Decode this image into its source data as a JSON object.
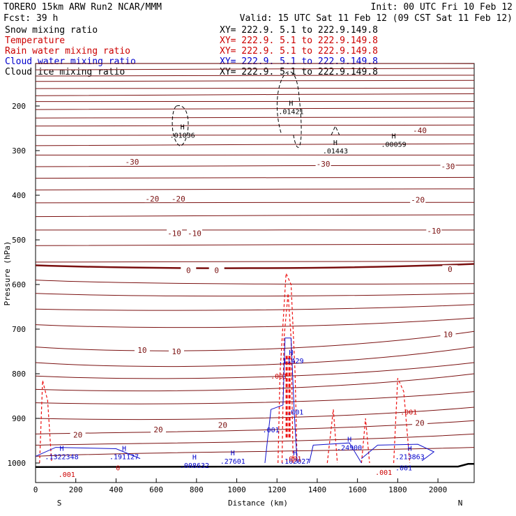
{
  "header": {
    "title_left": "TORERO  15km ARW   Run2    NCAR/MMM",
    "init": "Init: 00 UTC Fri 10 Feb 12",
    "fcst": "Fcst:    39 h",
    "valid": "Valid: 15 UTC Sat 11 Feb 12 (09 CST Sat 11 Feb 12)"
  },
  "legend": [
    {
      "label": "Snow mixing ratio",
      "xy": "XY= 222.9.  5.1 to 222.9.149.8",
      "color": "#000000"
    },
    {
      "label": "Temperature",
      "xy": "XY= 222.9.  5.1 to 222.9.149.8",
      "color": "#cc0000"
    },
    {
      "label": "Rain water mixing ratio",
      "xy": "XY= 222.9.  5.1 to 222.9.149.8",
      "color": "#cc0000"
    },
    {
      "label": "Cloud water mixing ratio",
      "xy": "XY= 222.9.  5.1 to 222.9.149.8",
      "color": "#0000cc"
    },
    {
      "label": "Cloud ice mixing ratio",
      "xy": "XY= 222.9.  5.1 to 222.9.149.8",
      "color": "#000000"
    }
  ],
  "colors": {
    "temperature": "#7a1010",
    "rain": "#ee1111",
    "cloud_water": "#1111cc",
    "snow": "#000000",
    "ground": "#000000"
  },
  "chart_data": {
    "type": "contour",
    "xlabel": "Distance (km)",
    "ylabel": "Pressure (hPa)",
    "xlim": [
      0,
      2180
    ],
    "ylim": [
      1010,
      100
    ],
    "x_ticks": [
      0,
      200,
      400,
      600,
      800,
      1000,
      1200,
      1400,
      1600,
      1800,
      2000
    ],
    "y_ticks": [
      200,
      300,
      400,
      500,
      600,
      700,
      800,
      900,
      1000
    ],
    "direction_labels": {
      "left": "S",
      "right": "N"
    },
    "temperature_labels": [
      {
        "text": "-40",
        "x": 1910,
        "p": 255
      },
      {
        "text": "-30",
        "x": 480,
        "p": 325
      },
      {
        "text": "-30",
        "x": 1430,
        "p": 330
      },
      {
        "text": "-30",
        "x": 2050,
        "p": 335
      },
      {
        "text": "-20",
        "x": 580,
        "p": 408
      },
      {
        "text": "-20",
        "x": 710,
        "p": 408
      },
      {
        "text": "-20",
        "x": 1900,
        "p": 410
      },
      {
        "text": "-10",
        "x": 690,
        "p": 485
      },
      {
        "text": "-10",
        "x": 790,
        "p": 485
      },
      {
        "text": "-10",
        "x": 1980,
        "p": 480
      },
      {
        "text": "0",
        "x": 760,
        "p": 568
      },
      {
        "text": "0",
        "x": 900,
        "p": 568
      },
      {
        "text": "0",
        "x": 2060,
        "p": 566
      },
      {
        "text": "10",
        "x": 530,
        "p": 747
      },
      {
        "text": "10",
        "x": 700,
        "p": 750
      },
      {
        "text": "10",
        "x": 2050,
        "p": 712
      },
      {
        "text": "20",
        "x": 210,
        "p": 937
      },
      {
        "text": "20",
        "x": 610,
        "p": 925
      },
      {
        "text": "20",
        "x": 930,
        "p": 915
      },
      {
        "text": "20",
        "x": 1910,
        "p": 910
      }
    ],
    "maxima_labels": [
      {
        "text": ".01036",
        "x": 730,
        "p": 265,
        "color": "#000000"
      },
      {
        "text": ".01421",
        "x": 1270,
        "p": 212,
        "color": "#000000"
      },
      {
        "text": ".01443",
        "x": 1490,
        "p": 300,
        "color": "#000000"
      },
      {
        "text": ".00059",
        "x": 1780,
        "p": 285,
        "color": "#000000"
      },
      {
        "text": ".1322348",
        "x": 130,
        "p": 985,
        "color": "#0000cc"
      },
      {
        "text": ".191127",
        "x": 440,
        "p": 985,
        "color": "#0000cc"
      },
      {
        "text": ".008632",
        "x": 790,
        "p": 1005,
        "color": "#0000cc"
      },
      {
        "text": ".27601",
        "x": 980,
        "p": 995,
        "color": "#0000cc"
      },
      {
        "text": ".11429",
        "x": 1270,
        "p": 770,
        "color": "#0000cc"
      },
      {
        "text": ".102027",
        "x": 1290,
        "p": 995,
        "color": "#0000cc"
      },
      {
        "text": ".24900",
        "x": 1560,
        "p": 965,
        "color": "#0000cc"
      },
      {
        "text": ".213863",
        "x": 1860,
        "p": 985,
        "color": "#0000cc"
      }
    ],
    "minor_labels": [
      {
        "text": ".001",
        "x": 1210,
        "p": 805,
        "color": "#cc0000"
      },
      {
        "text": ".001",
        "x": 1290,
        "p": 885,
        "color": "#0000cc"
      },
      {
        "text": ".001",
        "x": 1170,
        "p": 925,
        "color": "#0000cc"
      },
      {
        "text": ".001",
        "x": 1280,
        "p": 990,
        "color": "#cc0000"
      },
      {
        "text": ".001",
        "x": 1855,
        "p": 885,
        "color": "#cc0000"
      },
      {
        "text": ".001",
        "x": 1830,
        "p": 1010,
        "color": "#0000cc"
      },
      {
        "text": ".001",
        "x": 1730,
        "p": 1020,
        "color": "#cc0000"
      },
      {
        "text": ".001",
        "x": 155,
        "p": 1025,
        "color": "#cc0000"
      },
      {
        "text": "0",
        "x": 410,
        "p": 1010,
        "color": "#cc0000"
      }
    ]
  }
}
